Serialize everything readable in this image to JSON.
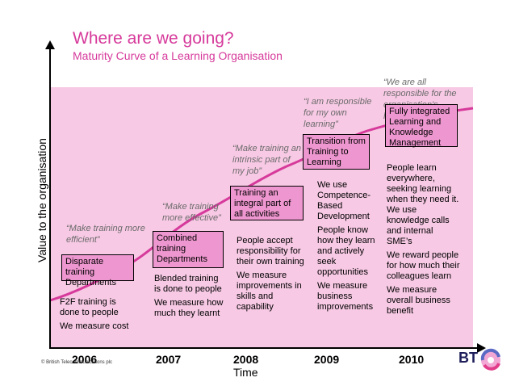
{
  "title": "Where are we going?",
  "subtitle": "Maturity Curve of a Learning Organisation",
  "ylabel": "Value to the organisation",
  "xlabel": "Time",
  "copyright": "© British Telecommunications plc",
  "brand": {
    "logo_text": "BT",
    "accent_color": "#d63a9b",
    "box_color": "#ee96cf",
    "background_color": "#f7c9e4"
  },
  "years": [
    "2006",
    "2007",
    "2008",
    "2009",
    "2010"
  ],
  "stages": [
    {
      "quote": "“Make training more efficient”",
      "box": "Disparate training Departments",
      "notes": [
        "F2F training is done to people",
        "We measure cost"
      ]
    },
    {
      "quote": "“Make training more effective”",
      "box": "Combined training Departments",
      "notes": [
        "Blended training is done to people",
        "We measure how much they learnt"
      ]
    },
    {
      "quote": "“Make training an intrinsic part of my job”",
      "box": "Training an integral part of all activities",
      "notes": [
        "People accept responsibility for their own training",
        "We measure improvements in skills and capability"
      ]
    },
    {
      "quote": "“I am responsible for my own learning”",
      "box": "Transition from Training to Learning",
      "notes": [
        "We use Competence-Based Development",
        "People know how they learn and actively seek opportunities",
        "We measure business improvements"
      ]
    },
    {
      "quote": "“We are all responsible for the organisation’s learning”",
      "box": "Fully integrated Learning and Knowledge Management",
      "notes": [
        "People learn everywhere, seeking learning when they need it. We use knowledge calls and internal SME’s",
        "We reward people for how much their colleagues learn",
        "We measure overall business benefit"
      ]
    }
  ]
}
